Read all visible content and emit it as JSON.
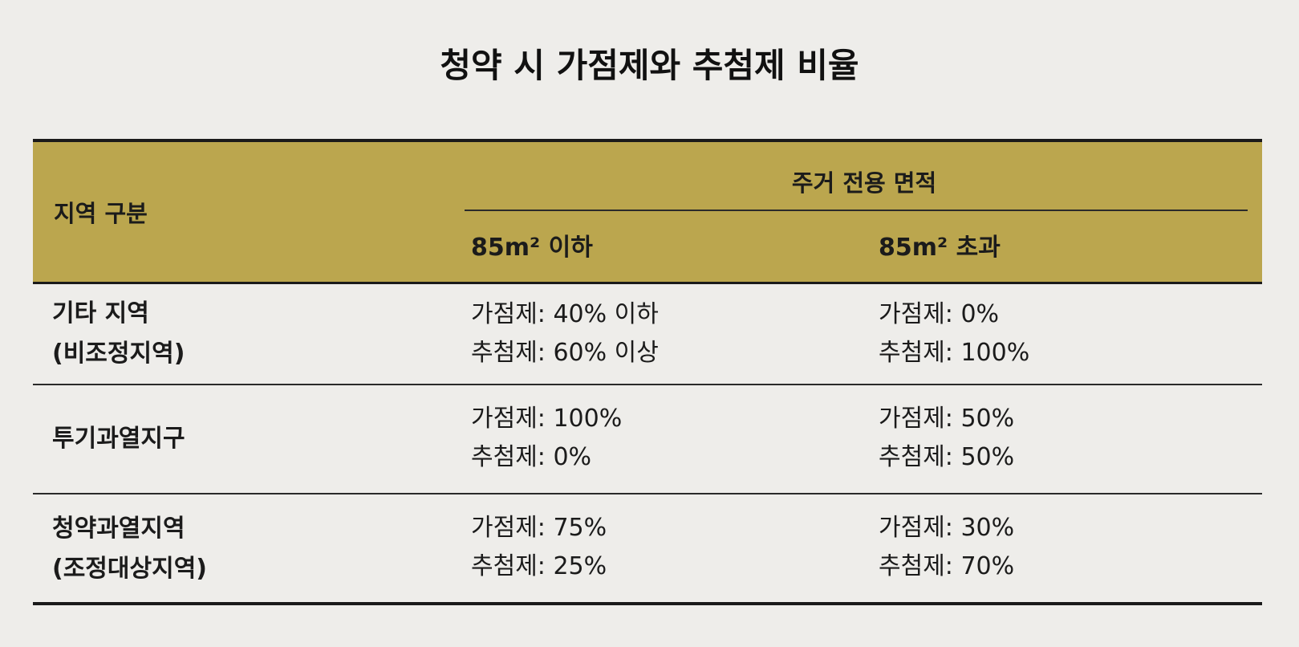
{
  "title": "청약 시 가점제와 추첨제 비율",
  "header": {
    "region": "지역 구분",
    "area": "주거 전용 면적",
    "columns": [
      "85m² 이하",
      "85m² 초과"
    ]
  },
  "rows": [
    {
      "region": [
        "기타 지역",
        "(비조정지역)"
      ],
      "cells": [
        [
          "가점제: 40% 이하",
          "추첨제: 60% 이상"
        ],
        [
          "가점제: 0%",
          "추첨제: 100%"
        ]
      ]
    },
    {
      "region": [
        "투기과열지구"
      ],
      "cells": [
        [
          "가점제: 100%",
          "추첨제: 0%"
        ],
        [
          "가점제: 50%",
          "추첨제: 50%"
        ]
      ]
    },
    {
      "region": [
        "청약과열지역",
        "(조정대상지역)"
      ],
      "cells": [
        [
          "가점제: 75%",
          "추첨제: 25%"
        ],
        [
          "가점제: 30%",
          "추첨제: 70%"
        ]
      ]
    }
  ]
}
